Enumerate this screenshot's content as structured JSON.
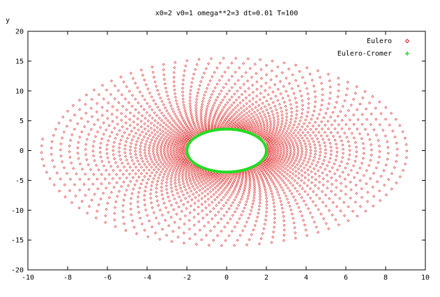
{
  "chart_data": {
    "type": "scatter",
    "title": "x0=2 v0=1 omega**2=3 dt=0.01 T=100",
    "xlabel": "",
    "ylabel": "y",
    "xlim": [
      -10,
      10
    ],
    "ylim": [
      -20,
      20
    ],
    "xticks": [
      "-10",
      "-8",
      "-6",
      "-4",
      "-2",
      "0",
      "2",
      "4",
      "6",
      "8",
      "10"
    ],
    "yticks": [
      "-20",
      "-15",
      "-10",
      "-5",
      "0",
      "5",
      "10",
      "15",
      "20"
    ],
    "grid": false,
    "legend_position": "top-right",
    "series": [
      {
        "name": "Eulero",
        "color": "#e02020",
        "marker": "diamond",
        "description_params": {
          "x_start": 2,
          "v_start": 1,
          "omega_sq": 3,
          "dt": 0.01,
          "t_max": 100,
          "x_end_approx": -9.3,
          "y_end_approx": 2.0
        }
      },
      {
        "name": "Eulero-Cromer",
        "color": "#22dd22",
        "marker": "plus",
        "description_params": {
          "x_amplitude": 2.0,
          "y_amplitude": 3.6
        }
      }
    ]
  }
}
